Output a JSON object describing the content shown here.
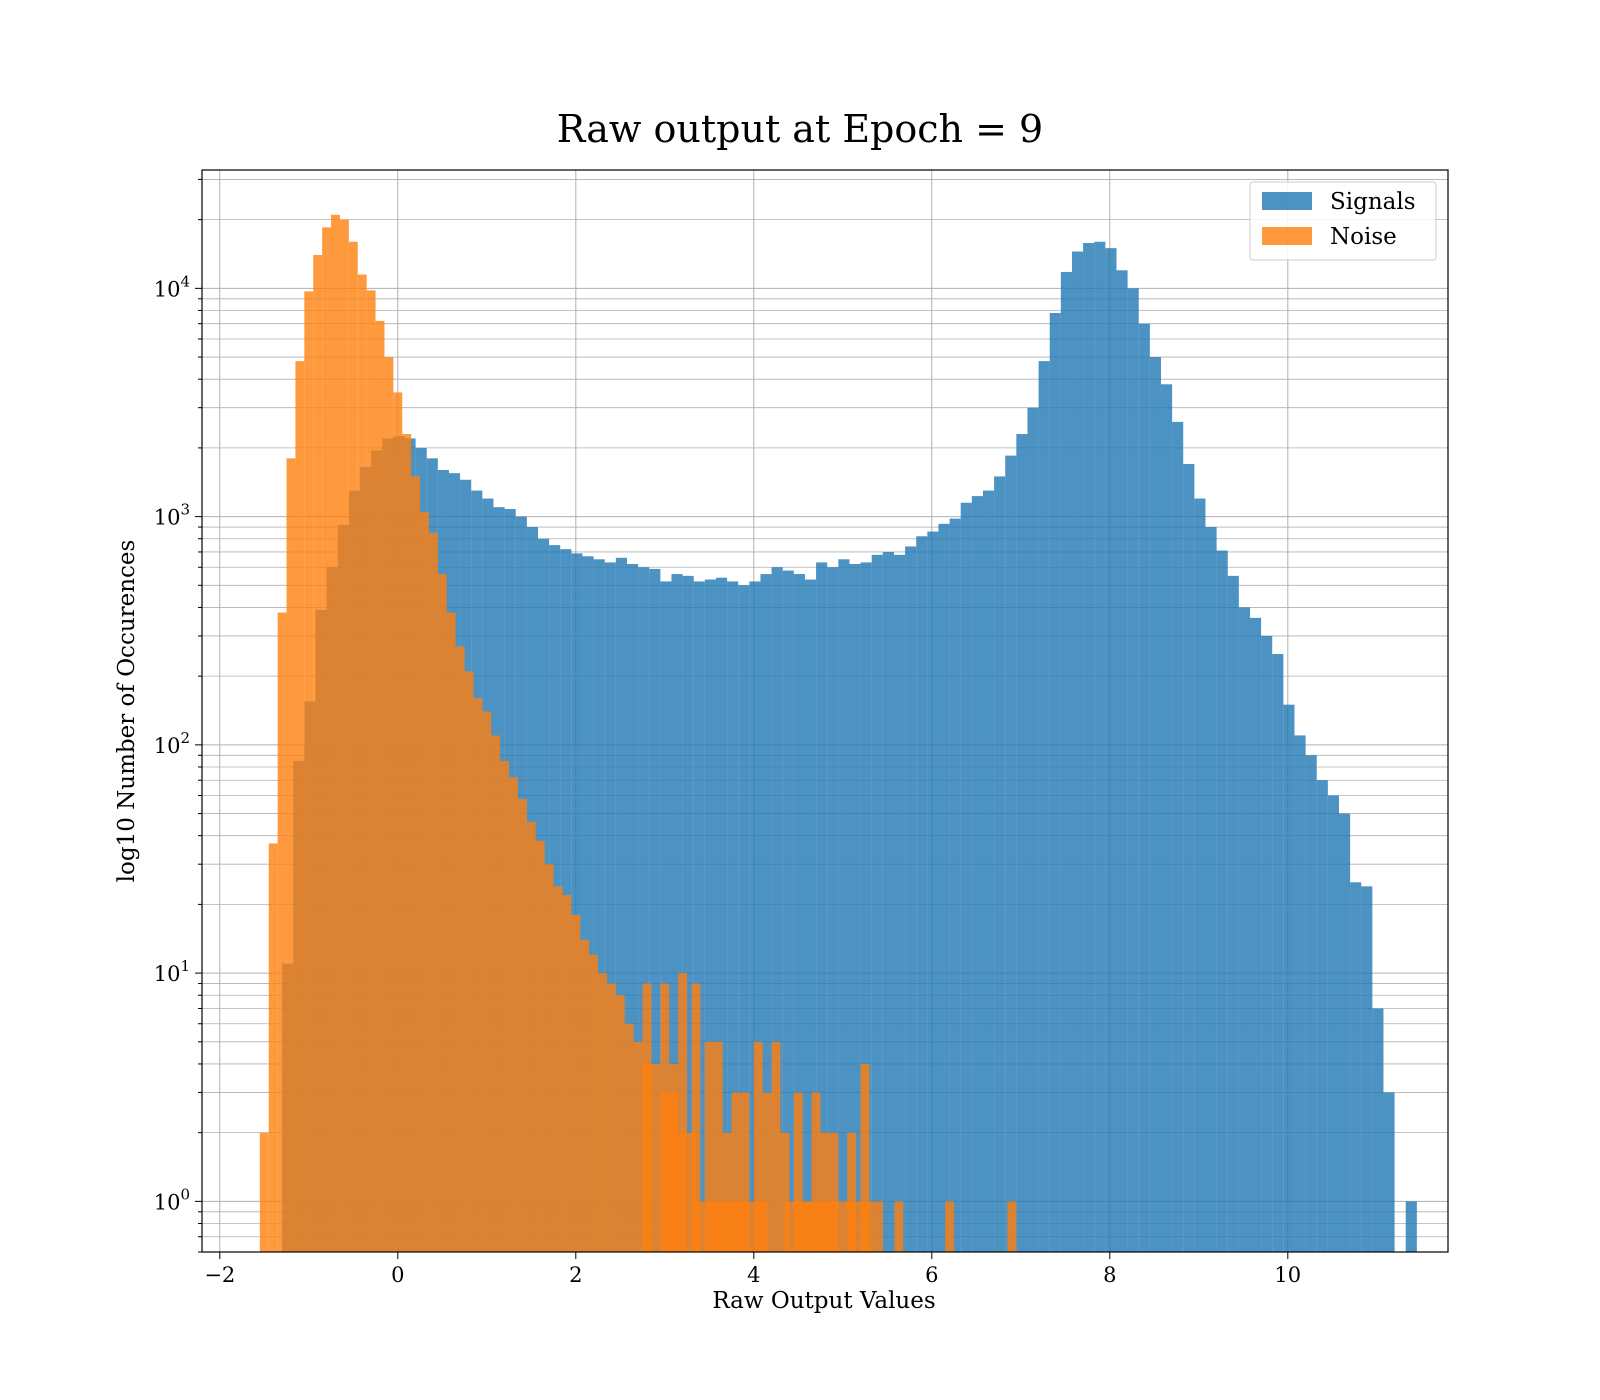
{
  "chart_data": {
    "type": "bar",
    "title": "Raw output at Epoch = 9",
    "xlabel": "Raw Output Values",
    "ylabel": "log10 Number of Occurences",
    "yscale": "log",
    "xlim": [
      -2.2,
      11.8
    ],
    "ylim": [
      0.6,
      33000
    ],
    "x_ticks": [
      -2,
      0,
      2,
      4,
      6,
      8,
      10
    ],
    "x_tick_labels": [
      "−2",
      "0",
      "2",
      "4",
      "6",
      "8",
      "10"
    ],
    "y_tick_mantissa": "10",
    "y_tick_exponents": [
      "0",
      "1",
      "2",
      "3",
      "4"
    ],
    "y_ticks": [
      1,
      10,
      100,
      1000,
      10000
    ],
    "grid": true,
    "legend_position": "top-right",
    "series": [
      {
        "name": "Signals",
        "color": "#1f77b4",
        "bins": [
          [
            -1.3,
            -1.175,
            11
          ],
          [
            -1.175,
            -1.05,
            85
          ],
          [
            -1.05,
            -0.925,
            155
          ],
          [
            -0.925,
            -0.8,
            390
          ],
          [
            -0.8,
            -0.675,
            600
          ],
          [
            -0.675,
            -0.55,
            920
          ],
          [
            -0.55,
            -0.425,
            1300
          ],
          [
            -0.425,
            -0.3,
            1650
          ],
          [
            -0.3,
            -0.175,
            1950
          ],
          [
            -0.175,
            -0.05,
            2200
          ],
          [
            -0.05,
            0.075,
            2250
          ],
          [
            0.075,
            0.2,
            2200
          ],
          [
            0.2,
            0.325,
            2000
          ],
          [
            0.325,
            0.45,
            1800
          ],
          [
            0.45,
            0.575,
            1600
          ],
          [
            0.575,
            0.7,
            1550
          ],
          [
            0.7,
            0.825,
            1450
          ],
          [
            0.825,
            0.95,
            1300
          ],
          [
            0.95,
            1.075,
            1200
          ],
          [
            1.075,
            1.2,
            1100
          ],
          [
            1.2,
            1.325,
            1080
          ],
          [
            1.325,
            1.45,
            1000
          ],
          [
            1.45,
            1.575,
            900
          ],
          [
            1.575,
            1.7,
            800
          ],
          [
            1.7,
            1.825,
            750
          ],
          [
            1.825,
            1.95,
            720
          ],
          [
            1.95,
            2.075,
            690
          ],
          [
            2.075,
            2.2,
            670
          ],
          [
            2.2,
            2.325,
            650
          ],
          [
            2.325,
            2.45,
            630
          ],
          [
            2.45,
            2.575,
            660
          ],
          [
            2.575,
            2.7,
            620
          ],
          [
            2.7,
            2.825,
            600
          ],
          [
            2.825,
            2.95,
            590
          ],
          [
            2.95,
            3.075,
            520
          ],
          [
            3.075,
            3.2,
            560
          ],
          [
            3.2,
            3.325,
            550
          ],
          [
            3.325,
            3.45,
            520
          ],
          [
            3.45,
            3.575,
            530
          ],
          [
            3.575,
            3.7,
            540
          ],
          [
            3.7,
            3.825,
            520
          ],
          [
            3.825,
            3.95,
            500
          ],
          [
            3.95,
            4.075,
            520
          ],
          [
            4.075,
            4.2,
            560
          ],
          [
            4.2,
            4.325,
            600
          ],
          [
            4.325,
            4.45,
            580
          ],
          [
            4.45,
            4.575,
            560
          ],
          [
            4.575,
            4.7,
            530
          ],
          [
            4.7,
            4.825,
            630
          ],
          [
            4.825,
            4.95,
            600
          ],
          [
            4.95,
            5.075,
            650
          ],
          [
            5.075,
            5.2,
            620
          ],
          [
            5.2,
            5.325,
            630
          ],
          [
            5.325,
            5.45,
            680
          ],
          [
            5.45,
            5.575,
            700
          ],
          [
            5.575,
            5.7,
            680
          ],
          [
            5.7,
            5.825,
            740
          ],
          [
            5.825,
            5.95,
            820
          ],
          [
            5.95,
            6.075,
            860
          ],
          [
            6.075,
            6.2,
            930
          ],
          [
            6.2,
            6.325,
            980
          ],
          [
            6.325,
            6.45,
            1150
          ],
          [
            6.45,
            6.575,
            1230
          ],
          [
            6.575,
            6.7,
            1300
          ],
          [
            6.7,
            6.825,
            1500
          ],
          [
            6.825,
            6.95,
            1850
          ],
          [
            6.95,
            7.075,
            2300
          ],
          [
            7.075,
            7.2,
            3000
          ],
          [
            7.2,
            7.325,
            4800
          ],
          [
            7.325,
            7.45,
            7800
          ],
          [
            7.45,
            7.575,
            11800
          ],
          [
            7.575,
            7.7,
            14500
          ],
          [
            7.7,
            7.825,
            15800
          ],
          [
            7.825,
            7.95,
            16000
          ],
          [
            7.95,
            8.075,
            15000
          ],
          [
            8.075,
            8.2,
            12000
          ],
          [
            8.2,
            8.325,
            10000
          ],
          [
            8.325,
            8.45,
            7000
          ],
          [
            8.45,
            8.575,
            5000
          ],
          [
            8.575,
            8.7,
            3800
          ],
          [
            8.7,
            8.825,
            2600
          ],
          [
            8.825,
            8.95,
            1700
          ],
          [
            8.95,
            9.075,
            1200
          ],
          [
            9.075,
            9.2,
            900
          ],
          [
            9.2,
            9.325,
            710
          ],
          [
            9.325,
            9.45,
            550
          ],
          [
            9.45,
            9.575,
            400
          ],
          [
            9.575,
            9.7,
            360
          ],
          [
            9.7,
            9.825,
            300
          ],
          [
            9.825,
            9.95,
            250
          ],
          [
            9.95,
            10.075,
            150
          ],
          [
            10.075,
            10.2,
            110
          ],
          [
            10.2,
            10.325,
            90
          ],
          [
            10.325,
            10.45,
            70
          ],
          [
            10.45,
            10.575,
            60
          ],
          [
            10.575,
            10.7,
            50
          ],
          [
            10.7,
            10.825,
            25
          ],
          [
            10.825,
            10.95,
            24
          ],
          [
            10.95,
            11.075,
            7
          ],
          [
            11.075,
            11.2,
            3
          ],
          [
            11.2,
            11.325,
            0
          ],
          [
            11.325,
            11.45,
            1
          ]
        ]
      },
      {
        "name": "Noise",
        "color": "#ff7f0e",
        "bins": [
          [
            -1.55,
            -1.45,
            2
          ],
          [
            -1.45,
            -1.35,
            37
          ],
          [
            -1.35,
            -1.25,
            380
          ],
          [
            -1.25,
            -1.15,
            1800
          ],
          [
            -1.15,
            -1.05,
            4800
          ],
          [
            -1.05,
            -0.95,
            9700
          ],
          [
            -0.95,
            -0.85,
            14000
          ],
          [
            -0.85,
            -0.75,
            18500
          ],
          [
            -0.75,
            -0.65,
            21000
          ],
          [
            -0.65,
            -0.55,
            20000
          ],
          [
            -0.55,
            -0.45,
            16000
          ],
          [
            -0.45,
            -0.35,
            11500
          ],
          [
            -0.35,
            -0.25,
            9800
          ],
          [
            -0.25,
            -0.15,
            7200
          ],
          [
            -0.15,
            -0.05,
            5000
          ],
          [
            -0.05,
            0.05,
            3500
          ],
          [
            0.05,
            0.15,
            2300
          ],
          [
            0.15,
            0.25,
            1500
          ],
          [
            0.25,
            0.35,
            1050
          ],
          [
            0.35,
            0.45,
            850
          ],
          [
            0.45,
            0.55,
            560
          ],
          [
            0.55,
            0.65,
            380
          ],
          [
            0.65,
            0.75,
            270
          ],
          [
            0.75,
            0.85,
            210
          ],
          [
            0.85,
            0.95,
            160
          ],
          [
            0.95,
            1.05,
            140
          ],
          [
            1.05,
            1.15,
            110
          ],
          [
            1.15,
            1.25,
            85
          ],
          [
            1.25,
            1.35,
            72
          ],
          [
            1.35,
            1.45,
            58
          ],
          [
            1.45,
            1.55,
            46
          ],
          [
            1.55,
            1.65,
            38
          ],
          [
            1.65,
            1.75,
            30
          ],
          [
            1.75,
            1.85,
            24
          ],
          [
            1.85,
            1.95,
            22
          ],
          [
            1.95,
            2.05,
            18
          ],
          [
            2.05,
            2.15,
            14
          ],
          [
            2.15,
            2.25,
            12
          ],
          [
            2.25,
            2.35,
            10
          ],
          [
            2.35,
            2.45,
            9
          ],
          [
            2.45,
            2.55,
            8
          ],
          [
            2.55,
            2.65,
            6
          ],
          [
            2.65,
            2.75,
            5
          ],
          [
            2.75,
            2.85,
            4
          ],
          [
            2.85,
            2.95,
            4
          ],
          [
            2.95,
            3.05,
            3
          ],
          [
            3.05,
            3.15,
            3
          ],
          [
            3.15,
            3.25,
            2
          ],
          [
            3.25,
            3.35,
            2
          ],
          [
            3.35,
            3.45,
            1
          ],
          [
            3.45,
            3.55,
            1
          ],
          [
            3.55,
            3.65,
            1
          ],
          [
            3.65,
            3.75,
            1
          ],
          [
            3.75,
            3.85,
            1
          ],
          [
            3.85,
            3.95,
            1
          ],
          [
            3.95,
            4.05,
            1
          ],
          [
            4.05,
            4.15,
            1
          ],
          [
            4.35,
            4.45,
            1
          ],
          [
            4.45,
            4.55,
            1
          ],
          [
            4.55,
            4.65,
            1
          ],
          [
            4.65,
            4.75,
            1
          ],
          [
            4.75,
            4.85,
            1
          ],
          [
            4.85,
            4.95,
            1
          ],
          [
            4.95,
            5.05,
            1
          ],
          [
            5.05,
            5.15,
            1
          ],
          [
            5.15,
            5.25,
            1
          ],
          [
            5.25,
            5.35,
            1
          ],
          [
            5.35,
            5.45,
            1
          ],
          [
            5.58,
            5.68,
            1
          ],
          [
            6.15,
            6.25,
            1
          ],
          [
            6.85,
            6.95,
            1
          ]
        ],
        "spikes": [
          [
            2.75,
            2.85,
            9
          ],
          [
            2.95,
            3.05,
            9
          ],
          [
            3.05,
            3.15,
            4
          ],
          [
            3.15,
            3.25,
            10
          ],
          [
            3.3,
            3.4,
            9
          ],
          [
            3.45,
            3.55,
            5
          ],
          [
            3.55,
            3.65,
            5
          ],
          [
            3.65,
            3.75,
            2
          ],
          [
            3.75,
            3.85,
            3
          ],
          [
            3.85,
            3.95,
            3
          ],
          [
            4.0,
            4.1,
            5
          ],
          [
            4.1,
            4.2,
            3
          ],
          [
            4.2,
            4.3,
            5
          ],
          [
            4.3,
            4.4,
            2
          ],
          [
            4.45,
            4.55,
            3
          ],
          [
            4.55,
            4.65,
            1
          ],
          [
            4.65,
            4.75,
            3
          ],
          [
            4.75,
            4.85,
            2
          ],
          [
            4.85,
            4.95,
            2
          ],
          [
            5.05,
            5.15,
            2
          ],
          [
            5.2,
            5.3,
            4
          ]
        ]
      }
    ]
  }
}
